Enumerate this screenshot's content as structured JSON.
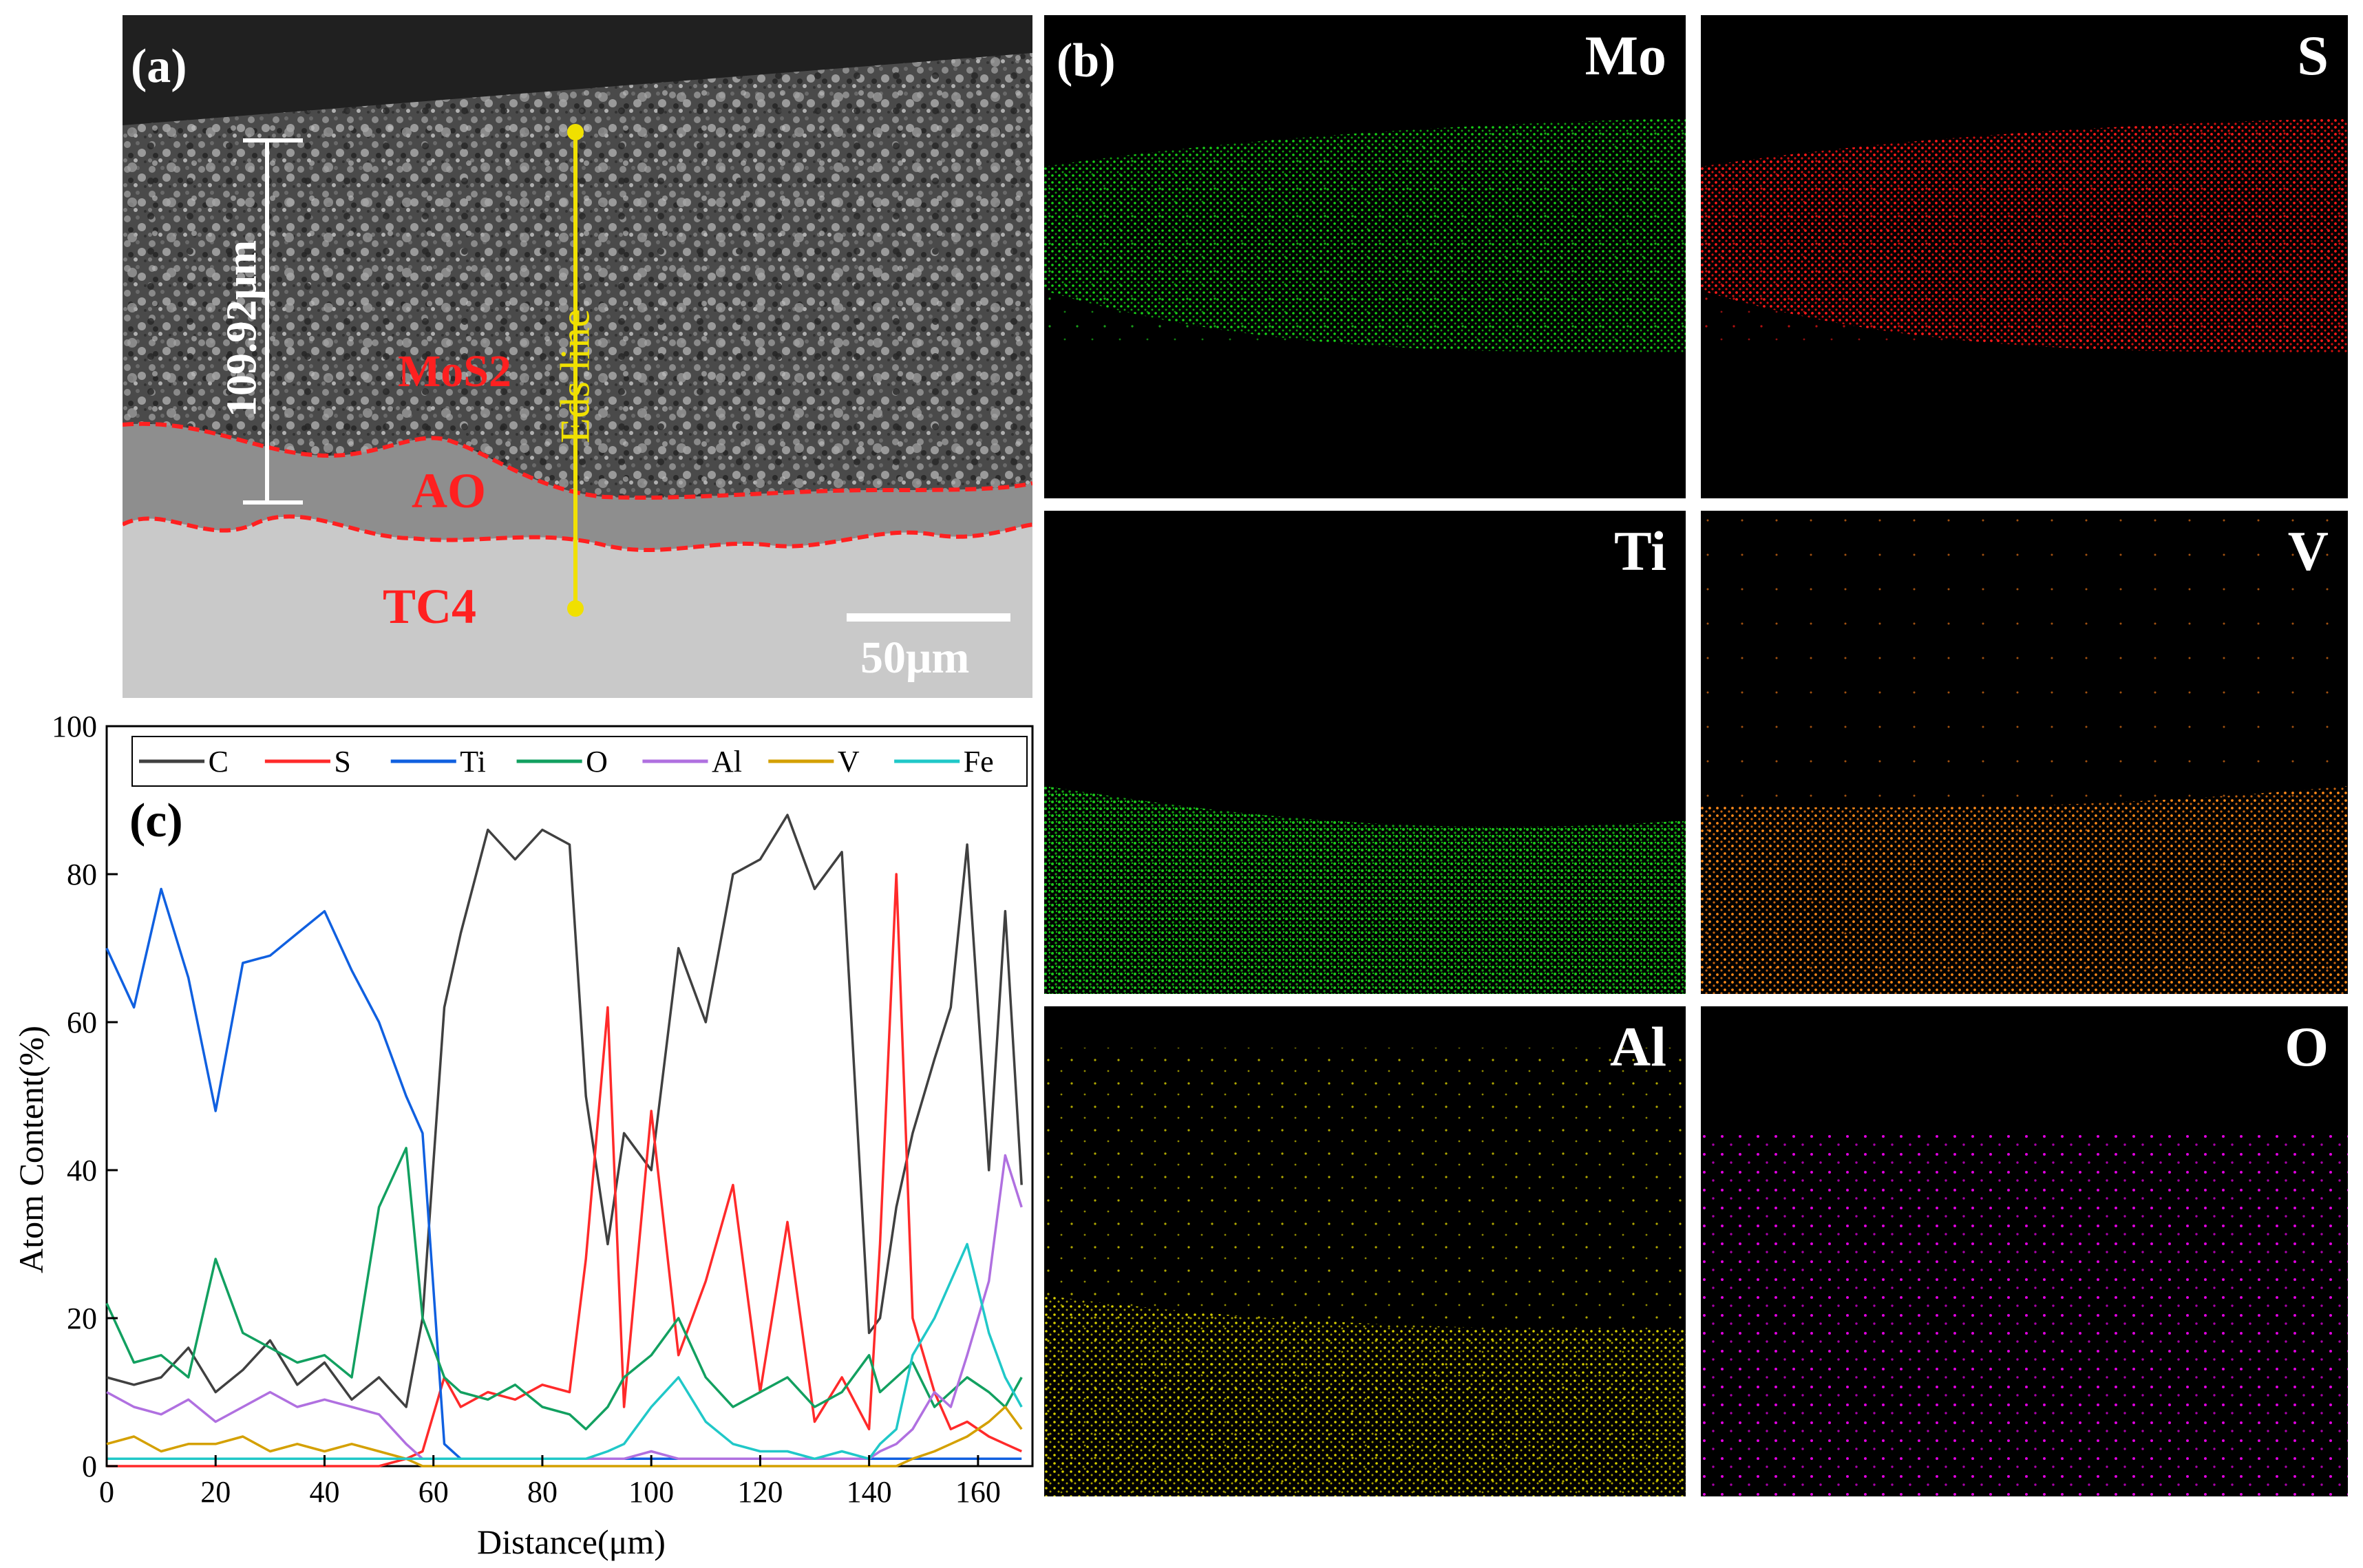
{
  "panel_a": {
    "letter": "(a)",
    "thickness_label": "109.92μm",
    "line_label": "Eds line",
    "layer_labels": [
      "MoS2",
      "AO",
      "TC4"
    ],
    "scale_bar_label": "50μm",
    "colors": {
      "annotation": "#ff2020",
      "eds_line": "#f0e000",
      "scale": "#ffffff"
    }
  },
  "panel_b": {
    "letter": "(b)",
    "maps": [
      {
        "element": "Mo",
        "color": "#18d018"
      },
      {
        "element": "S",
        "color": "#ff1a1a"
      },
      {
        "element": "Ti",
        "color": "#1ec81e"
      },
      {
        "element": "V",
        "color": "#ff8a1a"
      },
      {
        "element": "Al",
        "color": "#d8d000"
      },
      {
        "element": "O",
        "color": "#e000e0"
      }
    ]
  },
  "chart_data": {
    "type": "line",
    "panel_letter": "(c)",
    "xlabel": "Distance(μm)",
    "ylabel": "Atom Content(%)",
    "xlim": [
      0,
      170
    ],
    "ylim": [
      0,
      100
    ],
    "xticks": [
      0,
      20,
      40,
      60,
      80,
      100,
      120,
      140,
      160
    ],
    "yticks": [
      0,
      20,
      40,
      60,
      80,
      100
    ],
    "x": [
      0,
      5,
      10,
      15,
      20,
      25,
      30,
      35,
      40,
      45,
      50,
      55,
      58,
      62,
      65,
      70,
      75,
      80,
      85,
      88,
      92,
      95,
      100,
      105,
      110,
      115,
      120,
      125,
      130,
      135,
      140,
      142,
      145,
      148,
      152,
      155,
      158,
      162,
      165,
      168
    ],
    "series": [
      {
        "name": "C",
        "color": "#404040",
        "values": [
          12,
          11,
          12,
          16,
          10,
          13,
          17,
          11,
          14,
          9,
          12,
          8,
          20,
          62,
          72,
          86,
          82,
          86,
          84,
          50,
          30,
          45,
          40,
          70,
          60,
          80,
          82,
          88,
          78,
          83,
          18,
          20,
          35,
          45,
          55,
          62,
          84,
          40,
          75,
          38
        ]
      },
      {
        "name": "S",
        "color": "#ff2a2a",
        "values": [
          0,
          0,
          0,
          0,
          0,
          0,
          0,
          0,
          0,
          0,
          0,
          1,
          2,
          12,
          8,
          10,
          9,
          11,
          10,
          28,
          62,
          8,
          48,
          15,
          25,
          38,
          10,
          33,
          6,
          12,
          5,
          30,
          80,
          20,
          10,
          5,
          6,
          4,
          3,
          2
        ]
      },
      {
        "name": "Ti",
        "color": "#1060e0",
        "values": [
          70,
          62,
          78,
          66,
          48,
          68,
          69,
          72,
          75,
          67,
          60,
          50,
          45,
          3,
          1,
          1,
          1,
          1,
          1,
          1,
          1,
          1,
          1,
          1,
          1,
          1,
          1,
          1,
          1,
          1,
          1,
          1,
          1,
          1,
          1,
          1,
          1,
          1,
          1,
          1
        ]
      },
      {
        "name": "O",
        "color": "#12a060",
        "values": [
          22,
          14,
          15,
          12,
          28,
          18,
          16,
          14,
          15,
          12,
          35,
          43,
          20,
          12,
          10,
          9,
          11,
          8,
          7,
          5,
          8,
          12,
          15,
          20,
          12,
          8,
          10,
          12,
          8,
          10,
          15,
          10,
          12,
          14,
          8,
          10,
          12,
          10,
          8,
          12
        ]
      },
      {
        "name": "Al",
        "color": "#b070e0",
        "values": [
          10,
          8,
          7,
          9,
          6,
          8,
          10,
          8,
          9,
          8,
          7,
          3,
          1,
          1,
          1,
          1,
          1,
          1,
          1,
          1,
          1,
          1,
          2,
          1,
          1,
          1,
          1,
          1,
          1,
          1,
          1,
          2,
          3,
          5,
          10,
          8,
          15,
          25,
          42,
          35
        ]
      },
      {
        "name": "V",
        "color": "#d4a000",
        "values": [
          3,
          4,
          2,
          3,
          3,
          4,
          2,
          3,
          2,
          3,
          2,
          1,
          0,
          0,
          0,
          0,
          0,
          0,
          0,
          0,
          0,
          0,
          0,
          0,
          0,
          0,
          0,
          0,
          0,
          0,
          0,
          0,
          0,
          1,
          2,
          3,
          4,
          6,
          8,
          5
        ]
      },
      {
        "name": "Fe",
        "color": "#20c8c8",
        "values": [
          1,
          1,
          1,
          1,
          1,
          1,
          1,
          1,
          1,
          1,
          1,
          1,
          1,
          1,
          1,
          1,
          1,
          1,
          1,
          1,
          2,
          3,
          8,
          12,
          6,
          3,
          2,
          2,
          1,
          2,
          1,
          3,
          5,
          15,
          20,
          25,
          30,
          18,
          12,
          8
        ]
      }
    ]
  }
}
